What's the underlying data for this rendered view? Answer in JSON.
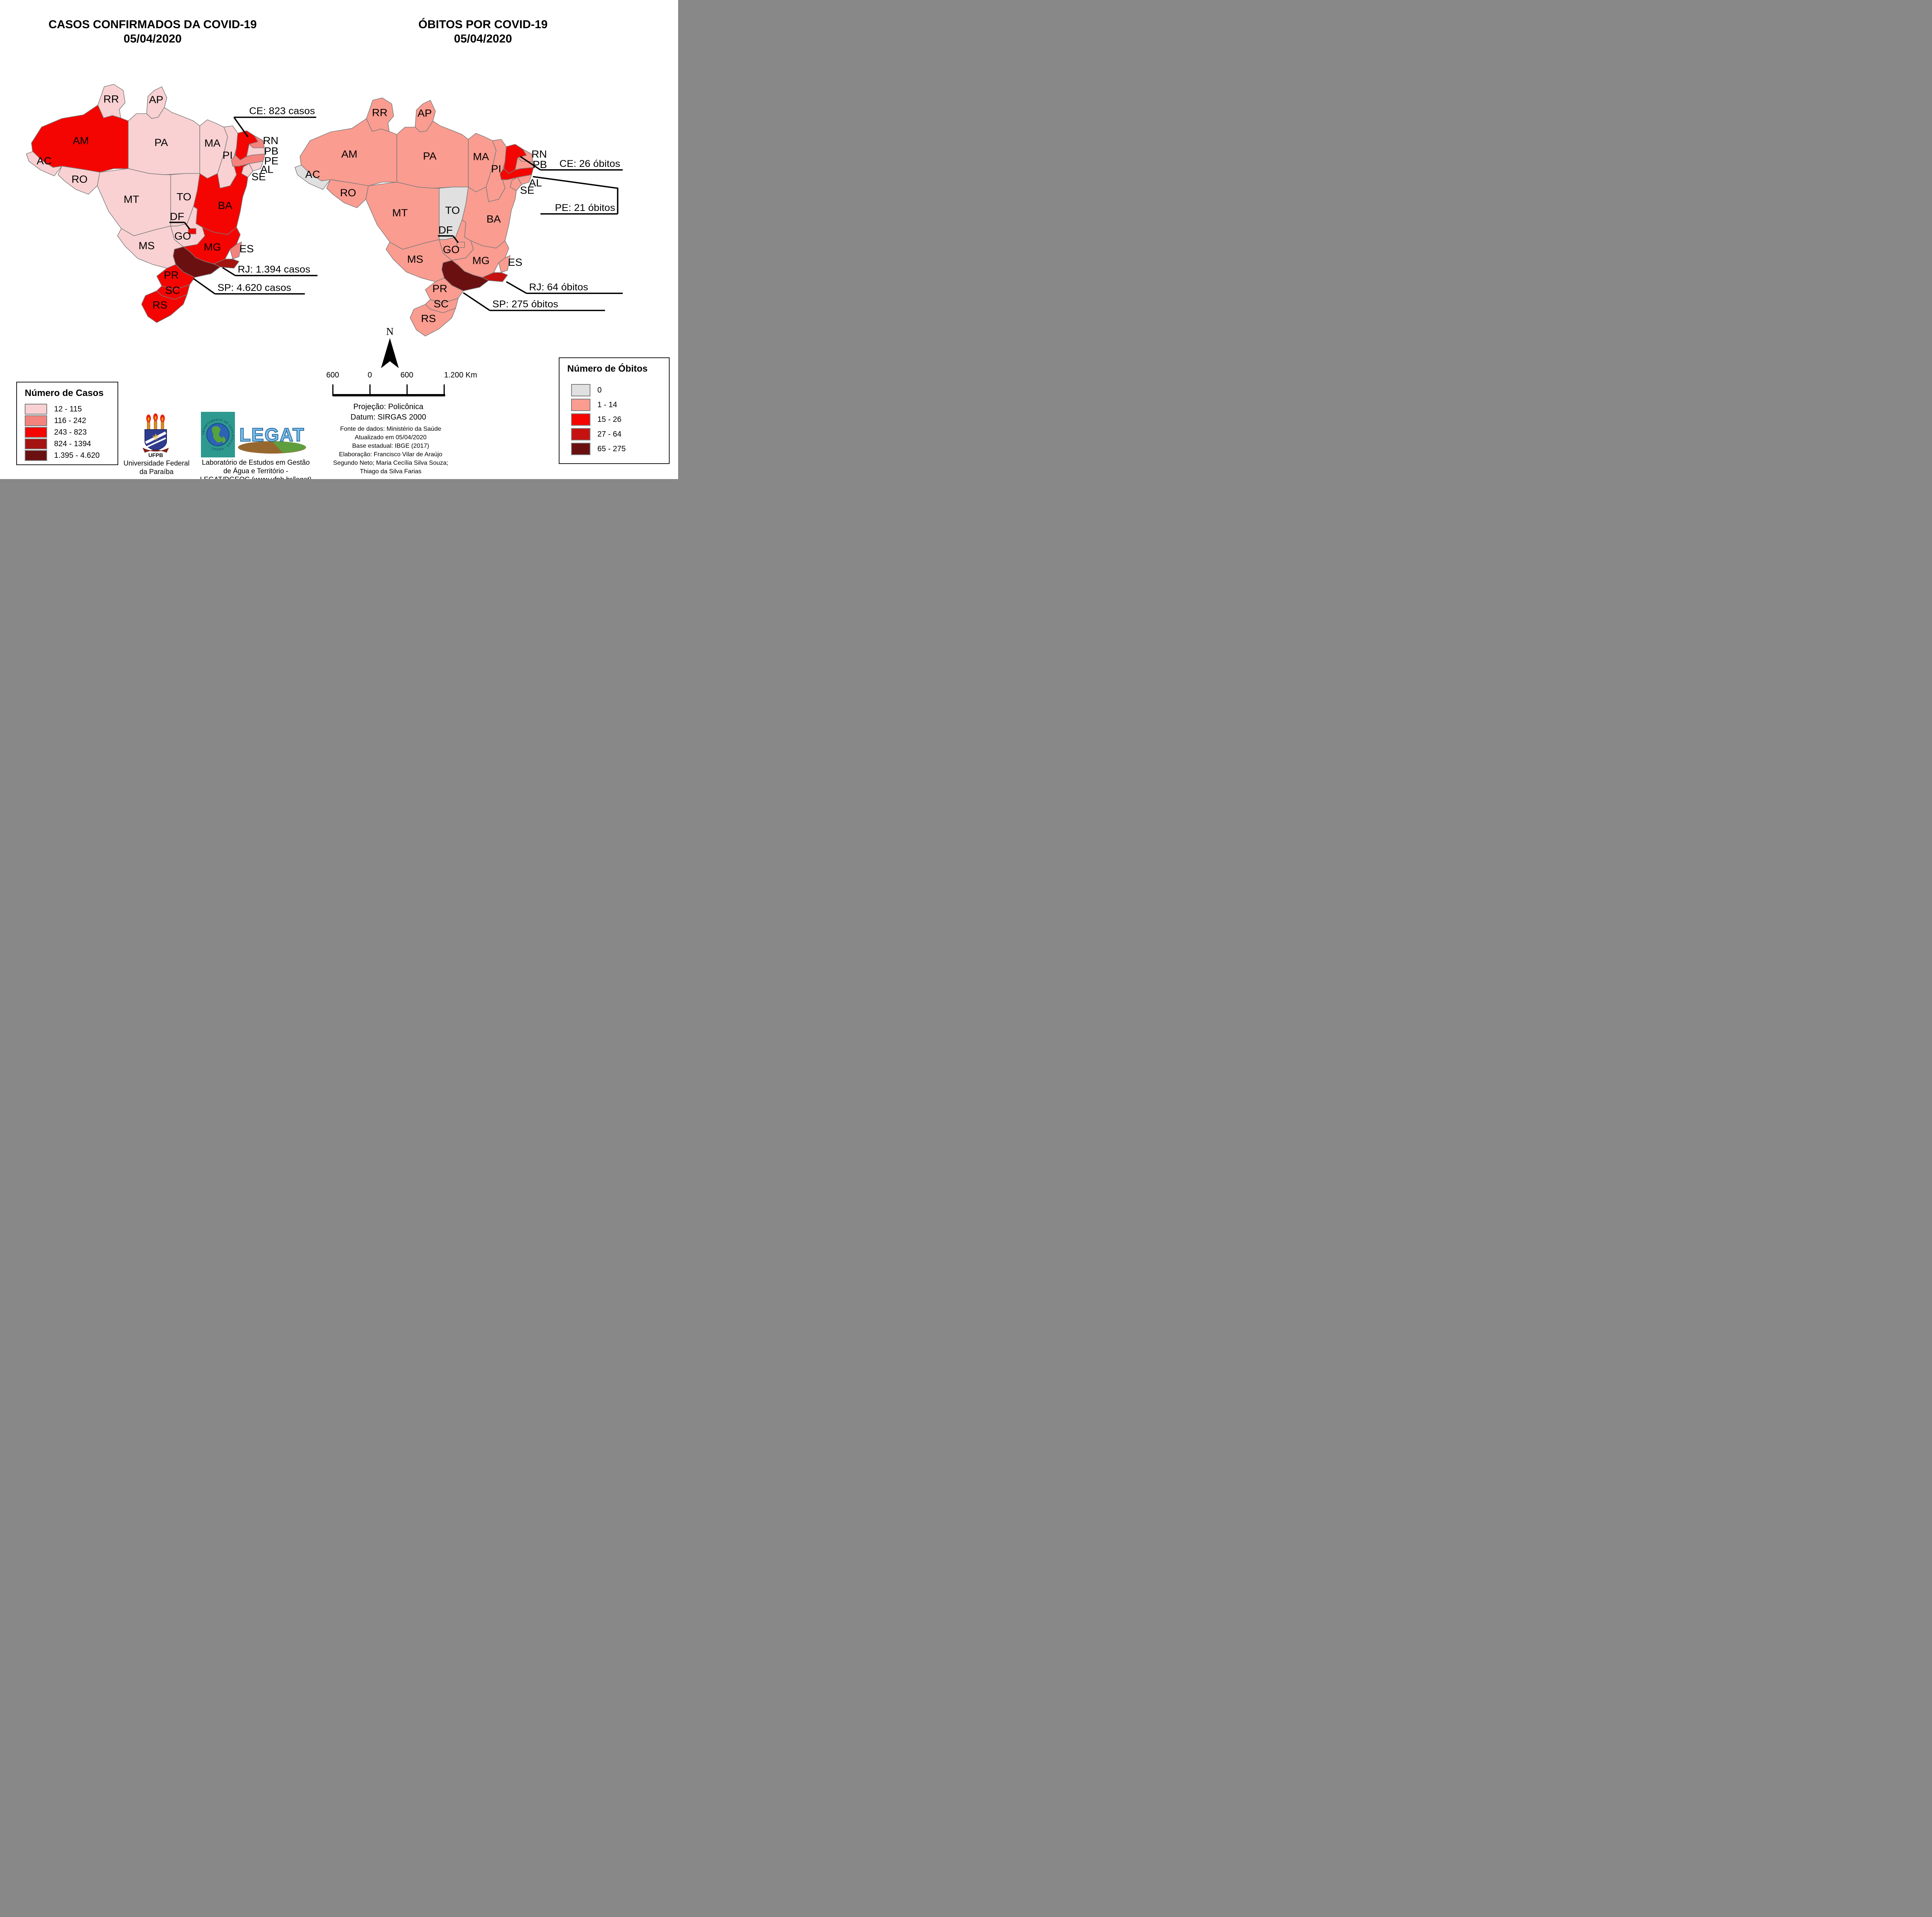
{
  "titles": {
    "left_line1": "CASOS CONFIRMADOS DA COVID-19",
    "left_line2": "05/04/2020",
    "right_line1": "ÓBITOS POR COVID-19",
    "right_line2": "05/04/2020"
  },
  "legends": {
    "cases": {
      "title": "Número de Casos",
      "items": [
        {
          "label": "12 - 115",
          "color": "#F9D1D2"
        },
        {
          "label": "116 - 242",
          "color": "#F4837E"
        },
        {
          "label": "243 - 823",
          "color": "#F40502"
        },
        {
          "label": "824 - 1394",
          "color": "#A41411"
        },
        {
          "label": "1.395 - 4.620",
          "color": "#6B1011"
        }
      ]
    },
    "deaths": {
      "title": "Número de Óbitos",
      "items": [
        {
          "label": "0",
          "color": "#E0E0E0"
        },
        {
          "label": "1 - 14",
          "color": "#FA9C90"
        },
        {
          "label": "15 - 26",
          "color": "#F40502"
        },
        {
          "label": "27 - 64",
          "color": "#C51210"
        },
        {
          "label": "65 - 275",
          "color": "#6B1011"
        }
      ]
    }
  },
  "palettes": {
    "cases": [
      "#F9D1D2",
      "#F4837E",
      "#F40502",
      "#A41411",
      "#6B1011"
    ],
    "deaths": [
      "#E0E0E0",
      "#FA9C90",
      "#F40502",
      "#C51210",
      "#6B1011"
    ]
  },
  "states": [
    {
      "code": "AC",
      "cases": 0,
      "deaths": 0
    },
    {
      "code": "AL",
      "cases": 0,
      "deaths": 1
    },
    {
      "code": "AP",
      "cases": 0,
      "deaths": 1
    },
    {
      "code": "AM",
      "cases": 2,
      "deaths": 1
    },
    {
      "code": "BA",
      "cases": 2,
      "deaths": 1
    },
    {
      "code": "CE",
      "cases": 2,
      "deaths": 2
    },
    {
      "code": "DF",
      "cases": 2,
      "deaths": 1
    },
    {
      "code": "ES",
      "cases": 1,
      "deaths": 1
    },
    {
      "code": "GO",
      "cases": 0,
      "deaths": 1
    },
    {
      "code": "MA",
      "cases": 0,
      "deaths": 1
    },
    {
      "code": "MT",
      "cases": 0,
      "deaths": 1
    },
    {
      "code": "MS",
      "cases": 0,
      "deaths": 1
    },
    {
      "code": "MG",
      "cases": 2,
      "deaths": 1
    },
    {
      "code": "PA",
      "cases": 0,
      "deaths": 1
    },
    {
      "code": "PB",
      "cases": 0,
      "deaths": 1
    },
    {
      "code": "PR",
      "cases": 2,
      "deaths": 1
    },
    {
      "code": "PE",
      "cases": 1,
      "deaths": 2
    },
    {
      "code": "PI",
      "cases": 0,
      "deaths": 1
    },
    {
      "code": "RJ",
      "cases": 3,
      "deaths": 3
    },
    {
      "code": "RN",
      "cases": 1,
      "deaths": 1
    },
    {
      "code": "RS",
      "cases": 2,
      "deaths": 1
    },
    {
      "code": "RO",
      "cases": 0,
      "deaths": 1
    },
    {
      "code": "RR",
      "cases": 0,
      "deaths": 1
    },
    {
      "code": "SC",
      "cases": 2,
      "deaths": 1
    },
    {
      "code": "SP",
      "cases": 4,
      "deaths": 4
    },
    {
      "code": "SE",
      "cases": 0,
      "deaths": 1
    },
    {
      "code": "TO",
      "cases": 0,
      "deaths": 0
    }
  ],
  "annotations": {
    "cases": [
      {
        "state": "CE",
        "text": "CE: 823 casos"
      },
      {
        "state": "RJ",
        "text": "RJ: 1.394 casos"
      },
      {
        "state": "SP",
        "text": "SP: 4.620 casos"
      }
    ],
    "deaths": [
      {
        "state": "CE",
        "text": "CE: 26 óbitos"
      },
      {
        "state": "PE",
        "text": "PE: 21 óbitos"
      },
      {
        "state": "RJ",
        "text": "RJ: 64 óbitos"
      },
      {
        "state": "SP",
        "text": "SP: 275 óbitos"
      }
    ]
  },
  "scalebar": {
    "labels": [
      "600",
      "0",
      "600",
      "1.200 Km"
    ]
  },
  "projection": [
    "Projeção: Policônica",
    "Datum: SIRGAS 2000"
  ],
  "credits": [
    "Fonte de dados: Ministério da Saúde",
    "Atualizado em 05/04/2020",
    "Base estadual: IBGE (2017)",
    "Elaboração: Francisco Vilar de Araújo",
    "Segundo Neto; Maria Cecília Silva Souza;",
    "Thiago da Silva Farias"
  ],
  "north_label": "N",
  "logos": {
    "ufpb": {
      "text": "UFPB",
      "caption": [
        "Universidade Federal",
        "da Paraíba"
      ]
    },
    "dgeoc": {
      "ring_text": "DEPARTAMENTO DE GEOCIÊNCIAS - DGEOC -"
    },
    "legat": {
      "text": "LEGAT",
      "caption": [
        "Laboratório de Estudos em Gestão",
        "de Água e Território -",
        "LEGAT/DGEOC (www.ufpb.br/legat)"
      ]
    }
  }
}
